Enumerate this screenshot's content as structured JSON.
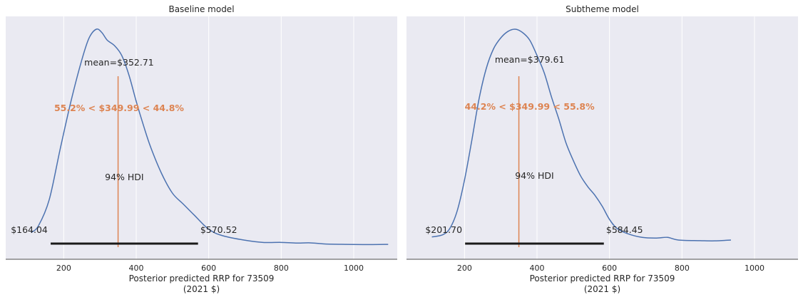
{
  "chart_data": [
    {
      "type": "area",
      "title": "Baseline model",
      "xlabel": "Posterior predicted RRP for 73509",
      "xlabel_unit": "(2021 $)",
      "xlim": [
        40,
        1120
      ],
      "xticks": [
        200,
        400,
        600,
        800,
        1000
      ],
      "ylim": [
        0,
        1
      ],
      "grid": true,
      "density": {
        "x": [
          110,
          130,
          160,
          190,
          220,
          250,
          270,
          290,
          305,
          320,
          340,
          360,
          380,
          400,
          420,
          440,
          470,
          500,
          530,
          560,
          600,
          640,
          700,
          750,
          800,
          840,
          880,
          920,
          980,
          1040,
          1095
        ],
        "y": [
          0.07,
          0.1,
          0.22,
          0.45,
          0.67,
          0.86,
          0.96,
          1.0,
          0.985,
          0.95,
          0.925,
          0.88,
          0.79,
          0.67,
          0.56,
          0.46,
          0.34,
          0.25,
          0.2,
          0.15,
          0.085,
          0.055,
          0.035,
          0.025,
          0.025,
          0.022,
          0.023,
          0.018,
          0.016,
          0.015,
          0.016
        ]
      },
      "mean_label": "mean=$352.71",
      "mean": 352.71,
      "ref_value": 349.99,
      "ref_label": "55.2% < $349.99 < 44.8%",
      "ref_color": "#dd8452",
      "hdi_label": "94% HDI",
      "hdi": [
        164.04,
        570.52
      ],
      "hdi_low_label": "$164.04",
      "hdi_high_label": "$570.52",
      "line_color": "#4c72b0"
    },
    {
      "type": "area",
      "title": "Subtheme model",
      "xlabel": "Posterior predicted RRP for 73509",
      "xlabel_unit": "(2021 $)",
      "xlim": [
        40,
        1120
      ],
      "xticks": [
        200,
        400,
        600,
        800,
        1000
      ],
      "ylim": [
        0,
        1
      ],
      "grid": true,
      "density": {
        "x": [
          110,
          140,
          160,
          180,
          200,
          220,
          240,
          260,
          280,
          300,
          320,
          340,
          360,
          380,
          400,
          420,
          440,
          460,
          480,
          500,
          520,
          540,
          560,
          580,
          600,
          620,
          650,
          690,
          730,
          760,
          790,
          850,
          890,
          935
        ],
        "y": [
          0.05,
          0.06,
          0.09,
          0.17,
          0.31,
          0.49,
          0.68,
          0.82,
          0.91,
          0.96,
          0.99,
          1.0,
          0.985,
          0.95,
          0.88,
          0.8,
          0.69,
          0.59,
          0.48,
          0.4,
          0.33,
          0.28,
          0.24,
          0.19,
          0.13,
          0.09,
          0.065,
          0.048,
          0.045,
          0.048,
          0.036,
          0.033,
          0.032,
          0.036
        ]
      },
      "mean_label": "mean=$379.61",
      "mean": 379.61,
      "ref_value": 349.99,
      "ref_label": "44.2% < $349.99 < 55.8%",
      "ref_color": "#dd8452",
      "hdi_label": "94% HDI",
      "hdi": [
        201.7,
        584.45
      ],
      "hdi_low_label": "$201.70",
      "hdi_high_label": "$584.45",
      "line_color": "#4c72b0"
    }
  ]
}
